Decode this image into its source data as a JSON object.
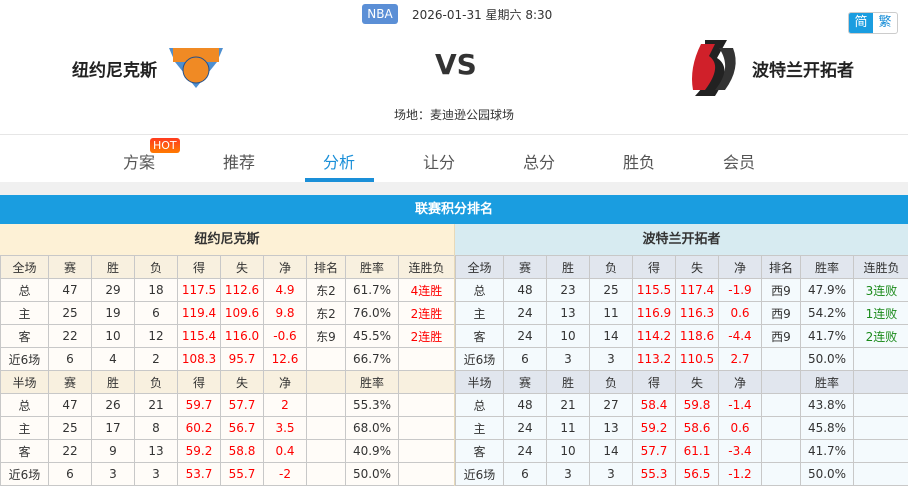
{
  "header": {
    "league": "NBA",
    "datetime": "2026-01-31 星期六 8:30",
    "lang": [
      "简",
      "繁"
    ],
    "home": "纽约尼克斯",
    "away": "波特兰开拓者",
    "vs": "VS",
    "venue": "场地：麦迪逊公园球场"
  },
  "tabs": [
    {
      "label": "方案",
      "badge": "HOT"
    },
    {
      "label": "推荐"
    },
    {
      "label": "分析",
      "active": true
    },
    {
      "label": "让分"
    },
    {
      "label": "总分"
    },
    {
      "label": "胜负"
    },
    {
      "label": "会员"
    }
  ],
  "section_title": "联赛积分排名",
  "tables": [
    {
      "team": "纽约尼克斯",
      "streak_color": "#ff0000",
      "full_header": [
        "全场",
        "赛",
        "胜",
        "负",
        "得",
        "失",
        "净",
        "排名",
        "胜率",
        "连胜负"
      ],
      "full_rows": [
        [
          "总",
          "47",
          "29",
          "18",
          "117.5",
          "112.6",
          "4.9",
          "东2",
          "61.7%",
          "4连胜"
        ],
        [
          "主",
          "25",
          "19",
          "6",
          "119.4",
          "109.6",
          "9.8",
          "东2",
          "76.0%",
          "2连胜"
        ],
        [
          "客",
          "22",
          "10",
          "12",
          "115.4",
          "116.0",
          "-0.6",
          "东9",
          "45.5%",
          "2连胜"
        ],
        [
          "近6场",
          "6",
          "4",
          "2",
          "108.3",
          "95.7",
          "12.6",
          "",
          "66.7%",
          ""
        ]
      ],
      "half_header": [
        "半场",
        "赛",
        "胜",
        "负",
        "得",
        "失",
        "净",
        "",
        "胜率",
        ""
      ],
      "half_rows": [
        [
          "总",
          "47",
          "26",
          "21",
          "59.7",
          "57.7",
          "2",
          "",
          "55.3%",
          ""
        ],
        [
          "主",
          "25",
          "17",
          "8",
          "60.2",
          "56.7",
          "3.5",
          "",
          "68.0%",
          ""
        ],
        [
          "客",
          "22",
          "9",
          "13",
          "59.2",
          "58.8",
          "0.4",
          "",
          "40.9%",
          ""
        ],
        [
          "近6场",
          "6",
          "3",
          "3",
          "53.7",
          "55.7",
          "-2",
          "",
          "50.0%",
          ""
        ]
      ]
    },
    {
      "team": "波特兰开拓者",
      "streak_color": "#1a8a1a",
      "full_header": [
        "全场",
        "赛",
        "胜",
        "负",
        "得",
        "失",
        "净",
        "排名",
        "胜率",
        "连胜负"
      ],
      "full_rows": [
        [
          "总",
          "48",
          "23",
          "25",
          "115.5",
          "117.4",
          "-1.9",
          "西9",
          "47.9%",
          "3连败"
        ],
        [
          "主",
          "24",
          "13",
          "11",
          "116.9",
          "116.3",
          "0.6",
          "西9",
          "54.2%",
          "1连败"
        ],
        [
          "客",
          "24",
          "10",
          "14",
          "114.2",
          "118.6",
          "-4.4",
          "西9",
          "41.7%",
          "2连败"
        ],
        [
          "近6场",
          "6",
          "3",
          "3",
          "113.2",
          "110.5",
          "2.7",
          "",
          "50.0%",
          ""
        ]
      ],
      "half_header": [
        "半场",
        "赛",
        "胜",
        "负",
        "得",
        "失",
        "净",
        "",
        "胜率",
        ""
      ],
      "half_rows": [
        [
          "总",
          "48",
          "21",
          "27",
          "58.4",
          "59.8",
          "-1.4",
          "",
          "43.8%",
          ""
        ],
        [
          "主",
          "24",
          "11",
          "13",
          "59.2",
          "58.6",
          "0.6",
          "",
          "45.8%",
          ""
        ],
        [
          "客",
          "24",
          "10",
          "14",
          "57.7",
          "61.1",
          "-3.4",
          "",
          "41.7%",
          ""
        ],
        [
          "近6场",
          "6",
          "3",
          "3",
          "55.3",
          "56.5",
          "-1.2",
          "",
          "50.0%",
          ""
        ]
      ]
    }
  ]
}
